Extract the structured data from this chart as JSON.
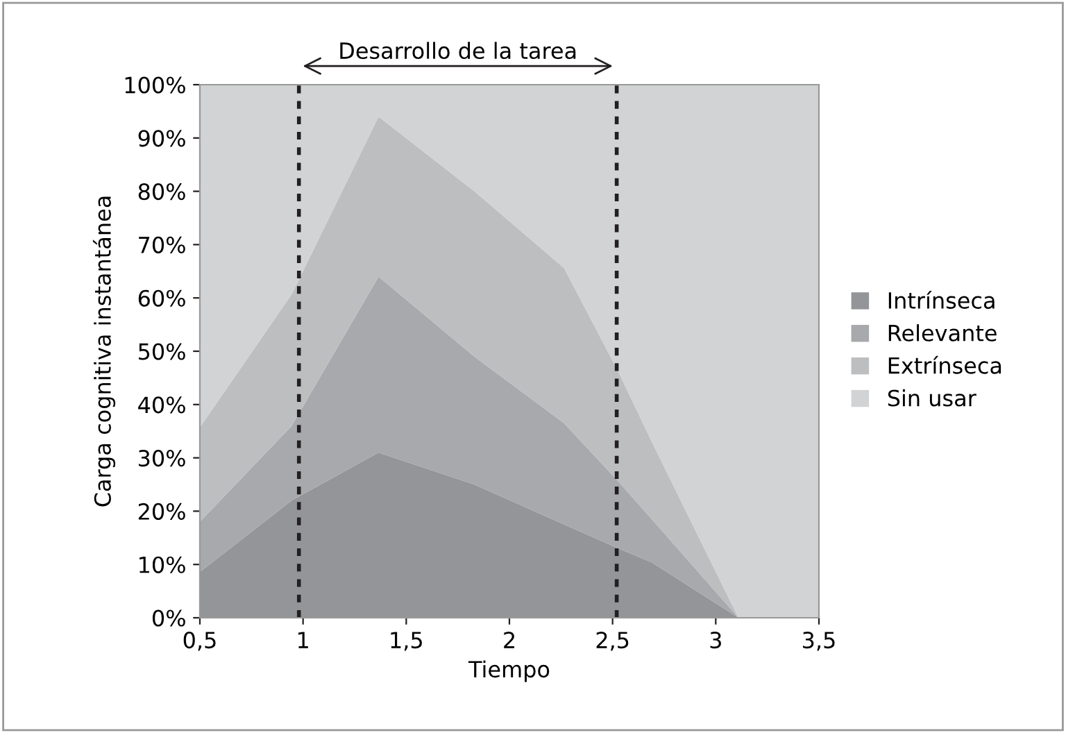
{
  "chart_data": {
    "type": "area",
    "stacked": true,
    "xlabel": "Tiempo",
    "ylabel": "Carga cognitiva instantánea",
    "x": [
      0.5,
      0.945,
      1.366,
      1.83,
      2.265,
      2.53,
      2.69,
      3.11,
      3.5
    ],
    "series": [
      {
        "name": "Intrínseca",
        "color": "#939598",
        "values": [
          8.6,
          22,
          31,
          25,
          17.5,
          13,
          10.4,
          0,
          0
        ]
      },
      {
        "name": "Relevante",
        "color": "#a7a9ac",
        "values": [
          9.4,
          14,
          33,
          24,
          19,
          12.5,
          8.1,
          0,
          0
        ]
      },
      {
        "name": "Extrínseca",
        "color": "#bcbec0",
        "values": [
          17.7,
          24.7,
          30,
          31,
          29.1,
          20.5,
          14.5,
          0,
          0
        ]
      },
      {
        "name": "Sin usar",
        "color": "#d1d3d4",
        "values": [
          64.3,
          39.3,
          6,
          20,
          34.4,
          54,
          67,
          100,
          100
        ]
      }
    ],
    "xlim": [
      0.5,
      3.5
    ],
    "xticks": [
      {
        "value": 0.5,
        "label": "0,5"
      },
      1,
      {
        "value": 1.5,
        "label": "1,5"
      },
      2,
      {
        "value": 2.5,
        "label": "2,5"
      },
      3,
      {
        "value": 3.5,
        "label": "3,5"
      }
    ],
    "ylim": [
      0,
      100
    ],
    "yticks": [
      {
        "value": 0,
        "label": "0%"
      },
      {
        "value": 10,
        "label": "10%"
      },
      {
        "value": 20,
        "label": "20%"
      },
      {
        "value": 30,
        "label": "30%"
      },
      {
        "value": 40,
        "label": "40%"
      },
      {
        "value": 50,
        "label": "50%"
      },
      {
        "value": 60,
        "label": "60%"
      },
      {
        "value": 70,
        "label": "70%"
      },
      {
        "value": 80,
        "label": "80%"
      },
      {
        "value": 90,
        "label": "90%"
      },
      {
        "value": 100,
        "label": "100%"
      }
    ],
    "ref_lines": [
      {
        "axis": "x",
        "value": 0.98,
        "color": "#231f20",
        "line_style": "dotted"
      },
      {
        "axis": "x",
        "value": 2.52,
        "color": "#231f20",
        "line_style": "dotted"
      }
    ],
    "annotations": [
      "Desarrollo de la tarea"
    ],
    "grid": false,
    "legend": "right"
  }
}
